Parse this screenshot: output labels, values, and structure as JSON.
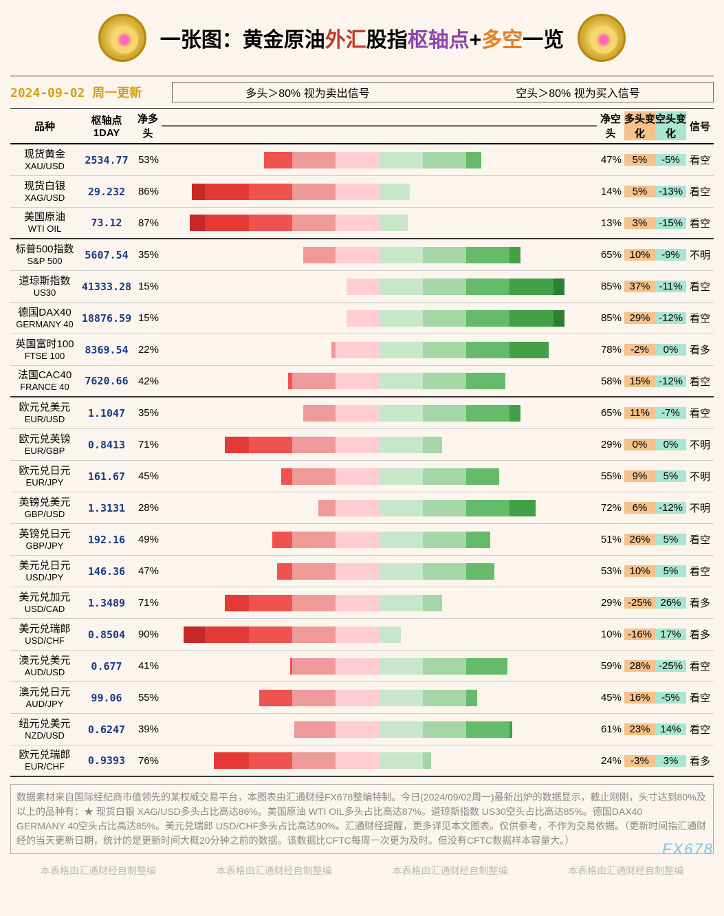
{
  "title": {
    "prefix": "一张图：",
    "part1": "黄金原油",
    "part2": "外汇",
    "part3": "股指",
    "part4": "枢轴点",
    "plus": "+",
    "part5": "多空",
    "suffix": "一览"
  },
  "date_label": "2024-09-02 周一更新",
  "legend": {
    "left": "多头＞80% 视为卖出信号",
    "right": "空头＞80% 视为买入信号"
  },
  "headers": {
    "name": "品种",
    "pivot": "枢轴点1DAY",
    "net_long": "净多头",
    "net_short": "净空头",
    "long_chg": "多头变化",
    "short_chg": "空头变化",
    "signal": "信号"
  },
  "scale_colors": [
    "#7e1a1a",
    "#c62828",
    "#e53935",
    "#ef5350",
    "#ef9a9a",
    "#ffcdd2",
    "#c8e6c9",
    "#a5d6a7",
    "#66bb6a",
    "#43a047",
    "#2e7d32",
    "#1b5e20"
  ],
  "red_shades": [
    "#ffcdd2",
    "#ef9a9a",
    "#ef5350",
    "#e53935",
    "#c62828"
  ],
  "green_shades": [
    "#c8e6c9",
    "#a5d6a7",
    "#66bb6a",
    "#43a047",
    "#2e7d32",
    "#1b5e20"
  ],
  "groups": [
    {
      "rows": [
        {
          "cn": "现货黄金",
          "en": "XAU/USD",
          "pivot": "2534.77",
          "long": 53,
          "short": 47,
          "long_chg": "5%",
          "short_chg": "-5%",
          "signal": "看空"
        },
        {
          "cn": "现货白银",
          "en": "XAG/USD",
          "pivot": "29.232",
          "long": 86,
          "short": 14,
          "long_chg": "5%",
          "short_chg": "-13%",
          "signal": "看空"
        },
        {
          "cn": "美国原油",
          "en": "WTI OIL",
          "pivot": "73.12",
          "long": 87,
          "short": 13,
          "long_chg": "3%",
          "short_chg": "-15%",
          "signal": "看空"
        }
      ]
    },
    {
      "rows": [
        {
          "cn": "标普500指数",
          "en": "S&P 500",
          "pivot": "5607.54",
          "long": 35,
          "short": 65,
          "long_chg": "10%",
          "short_chg": "-9%",
          "signal": "不明"
        },
        {
          "cn": "道琼斯指数",
          "en": "US30",
          "pivot": "41333.28",
          "long": 15,
          "short": 85,
          "long_chg": "37%",
          "short_chg": "-11%",
          "signal": "看空"
        },
        {
          "cn": "德国DAX40",
          "en": "GERMANY 40",
          "pivot": "18876.59",
          "long": 15,
          "short": 85,
          "long_chg": "29%",
          "short_chg": "-12%",
          "signal": "看空"
        },
        {
          "cn": "英国富时100",
          "en": "FTSE 100",
          "pivot": "8369.54",
          "long": 22,
          "short": 78,
          "long_chg": "-2%",
          "short_chg": "0%",
          "signal": "看多"
        },
        {
          "cn": "法国CAC40",
          "en": "FRANCE 40",
          "pivot": "7620.66",
          "long": 42,
          "short": 58,
          "long_chg": "15%",
          "short_chg": "-12%",
          "signal": "看空"
        }
      ]
    },
    {
      "rows": [
        {
          "cn": "欧元兑美元",
          "en": "EUR/USD",
          "pivot": "1.1047",
          "long": 35,
          "short": 65,
          "long_chg": "11%",
          "short_chg": "-7%",
          "signal": "看空"
        },
        {
          "cn": "欧元兑英镑",
          "en": "EUR/GBP",
          "pivot": "0.8413",
          "long": 71,
          "short": 29,
          "long_chg": "0%",
          "short_chg": "0%",
          "signal": "不明"
        },
        {
          "cn": "欧元兑日元",
          "en": "EUR/JPY",
          "pivot": "161.67",
          "long": 45,
          "short": 55,
          "long_chg": "9%",
          "short_chg": "5%",
          "signal": "不明"
        },
        {
          "cn": "英镑兑美元",
          "en": "GBP/USD",
          "pivot": "1.3131",
          "long": 28,
          "short": 72,
          "long_chg": "6%",
          "short_chg": "-12%",
          "signal": "不明"
        },
        {
          "cn": "英镑兑日元",
          "en": "GBP/JPY",
          "pivot": "192.16",
          "long": 49,
          "short": 51,
          "long_chg": "26%",
          "short_chg": "5%",
          "signal": "看空"
        },
        {
          "cn": "美元兑日元",
          "en": "USD/JPY",
          "pivot": "146.36",
          "long": 47,
          "short": 53,
          "long_chg": "10%",
          "short_chg": "5%",
          "signal": "看空"
        },
        {
          "cn": "美元兑加元",
          "en": "USD/CAD",
          "pivot": "1.3489",
          "long": 71,
          "short": 29,
          "long_chg": "-25%",
          "short_chg": "26%",
          "signal": "看多"
        },
        {
          "cn": "美元兑瑞郎",
          "en": "USD/CHF",
          "pivot": "0.8504",
          "long": 90,
          "short": 10,
          "long_chg": "-16%",
          "short_chg": "17%",
          "signal": "看多"
        },
        {
          "cn": "澳元兑美元",
          "en": "AUD/USD",
          "pivot": "0.677",
          "long": 41,
          "short": 59,
          "long_chg": "28%",
          "short_chg": "-25%",
          "signal": "看空"
        },
        {
          "cn": "澳元兑日元",
          "en": "AUD/JPY",
          "pivot": "99.06",
          "long": 55,
          "short": 45,
          "long_chg": "16%",
          "short_chg": "-5%",
          "signal": "看空"
        },
        {
          "cn": "纽元兑美元",
          "en": "NZD/USD",
          "pivot": "0.6247",
          "long": 39,
          "short": 61,
          "long_chg": "23%",
          "short_chg": "14%",
          "signal": "看空"
        },
        {
          "cn": "欧元兑瑞郎",
          "en": "EUR/CHF",
          "pivot": "0.9393",
          "long": 76,
          "short": 24,
          "long_chg": "-3%",
          "short_chg": "3%",
          "signal": "看多"
        }
      ]
    }
  ],
  "footer_text": "数据素材来自国际经纪商市值领先的某权威交易平台，本图表由汇通财经FX678整编特制。今日(2024/09/02周一)最新出炉的数据显示，截止刚刚，头寸达到80%及以上的品种有：★ 现货白银 XAG/USD多头占比高达86%。美国原油 WTI OIL多头占比高达87%。道琼斯指数 US30空头占比高达85%。德国DAX40　　 GERMANY 40空头占比高达85%。美元兑瑞郎 USD/CHF多头占比高达90%。汇通财经提醒，更多详见本文图表。仅供参考，不作为交易依据。（更新时间指汇通财经的当天更新日期，统计的是更新时间大概20分钟之前的数据。该数据比CFTC每周一次更为及时。但没有CFTC数据样本容量大。）",
  "watermark": "FX678",
  "credit": "本表格由汇通财经自制整编"
}
